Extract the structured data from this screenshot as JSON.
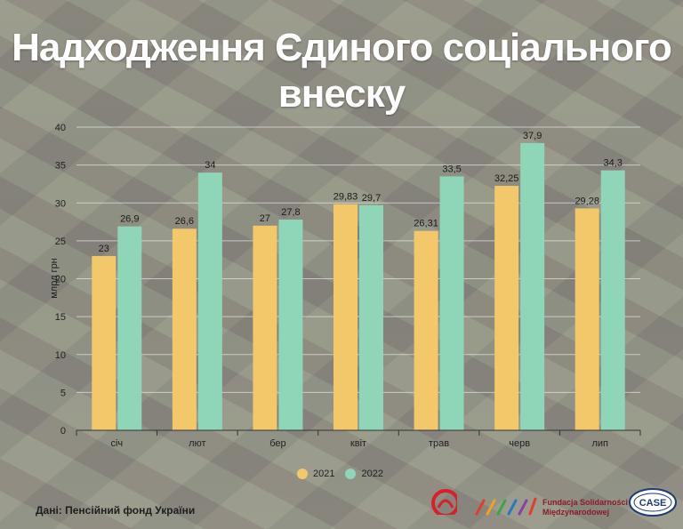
{
  "title_line1": "Надходження Єдиного соціального",
  "title_line2": "внеску",
  "source": "Дані: Пенсійний фонд України",
  "partners": {
    "fsm_line1": "Fundacja Solidarności",
    "fsm_line2": "Międzynarodowej",
    "case": "CASE"
  },
  "colors": {
    "series_2021": "#f2c86a",
    "series_2022": "#8fd5b8"
  },
  "chart_data": {
    "type": "bar",
    "title": "Надходження Єдиного соціального внеску",
    "ylabel": "млрд грн",
    "xlabel": "",
    "ylim": [
      0,
      40
    ],
    "yticks": [
      0,
      5,
      10,
      15,
      20,
      25,
      30,
      35,
      40
    ],
    "categories": [
      "січ",
      "лют",
      "бер",
      "квіт",
      "трав",
      "черв",
      "лип"
    ],
    "series": [
      {
        "name": "2021",
        "values": [
          23,
          26.6,
          27,
          29.83,
          26.31,
          32.25,
          29.28
        ],
        "labels": [
          "23",
          "26,6",
          "27",
          "29,83",
          "26,31",
          "32,25",
          "29,28"
        ]
      },
      {
        "name": "2022",
        "values": [
          26.9,
          34,
          27.8,
          29.7,
          33.5,
          37.9,
          34.3
        ],
        "labels": [
          "26,9",
          "34",
          "27,8",
          "29,7",
          "33,5",
          "37,9",
          "34,3"
        ]
      }
    ],
    "legend": "bottom-center",
    "grid": true
  }
}
